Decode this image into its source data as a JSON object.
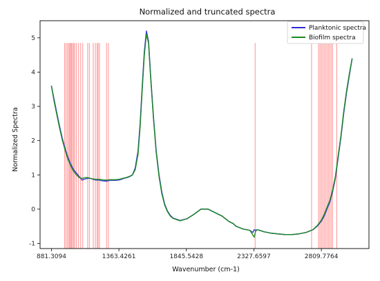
{
  "chart_data": {
    "type": "line",
    "title": "Normalized and truncated spectra",
    "xlabel": "Wavenumber (cm-1)",
    "ylabel": "Normalized Spectra",
    "xlim": [
      800,
      3150
    ],
    "ylim": [
      -1.15,
      5.5
    ],
    "x_ticks": [
      {
        "value": 881.3094,
        "label": "881.3094"
      },
      {
        "value": 1363.4261,
        "label": "1363.4261"
      },
      {
        "value": 1845.5428,
        "label": "1845.5428"
      },
      {
        "value": 2327.6597,
        "label": "2327.6597"
      },
      {
        "value": 2809.7764,
        "label": "2809.7764"
      }
    ],
    "y_ticks": [
      -1,
      0,
      1,
      2,
      3,
      4,
      5
    ],
    "grid": false,
    "legend_position": "top-right",
    "series": [
      {
        "name": "Planktonic spectra",
        "color": "#2b2bd6",
        "x": [
          881,
          900,
          920,
          940,
          960,
          980,
          1000,
          1020,
          1040,
          1060,
          1080,
          1100,
          1120,
          1140,
          1160,
          1180,
          1200,
          1220,
          1240,
          1260,
          1280,
          1300,
          1320,
          1340,
          1363,
          1380,
          1400,
          1420,
          1440,
          1460,
          1480,
          1500,
          1515,
          1530,
          1545,
          1560,
          1575,
          1590,
          1610,
          1630,
          1650,
          1670,
          1690,
          1710,
          1730,
          1750,
          1800,
          1850,
          1900,
          1950,
          2000,
          2050,
          2100,
          2150,
          2180,
          2200,
          2250,
          2300,
          2320,
          2330,
          2340,
          2350,
          2370,
          2400,
          2450,
          2500,
          2550,
          2600,
          2650,
          2700,
          2750,
          2780,
          2810,
          2830,
          2850,
          2870,
          2890,
          2910,
          2930,
          2950,
          2970,
          2990,
          3010,
          3030
        ],
        "y": [
          3.6,
          3.2,
          2.8,
          2.4,
          2.05,
          1.75,
          1.5,
          1.3,
          1.15,
          1.05,
          0.95,
          0.85,
          0.88,
          0.9,
          0.9,
          0.87,
          0.85,
          0.85,
          0.83,
          0.82,
          0.82,
          0.84,
          0.84,
          0.84,
          0.85,
          0.87,
          0.9,
          0.92,
          0.95,
          1.0,
          1.2,
          1.7,
          2.5,
          3.6,
          4.6,
          5.2,
          4.9,
          3.9,
          2.7,
          1.7,
          1.0,
          0.5,
          0.15,
          -0.05,
          -0.18,
          -0.26,
          -0.33,
          -0.28,
          -0.15,
          0.0,
          0.0,
          -0.1,
          -0.2,
          -0.36,
          -0.42,
          -0.5,
          -0.58,
          -0.62,
          -0.68,
          -0.6,
          -0.62,
          -0.6,
          -0.62,
          -0.66,
          -0.7,
          -0.72,
          -0.74,
          -0.74,
          -0.72,
          -0.68,
          -0.6,
          -0.5,
          -0.35,
          -0.2,
          0.0,
          0.2,
          0.5,
          0.9,
          1.5,
          2.1,
          2.8,
          3.4,
          3.9,
          4.4
        ]
      },
      {
        "name": "Biofilm spectra",
        "color": "#1a8a1a",
        "x": [
          881,
          900,
          920,
          940,
          960,
          980,
          1000,
          1020,
          1040,
          1060,
          1080,
          1100,
          1120,
          1140,
          1160,
          1180,
          1200,
          1220,
          1240,
          1260,
          1280,
          1300,
          1320,
          1340,
          1363,
          1380,
          1400,
          1420,
          1440,
          1460,
          1480,
          1500,
          1515,
          1530,
          1545,
          1560,
          1575,
          1590,
          1610,
          1630,
          1650,
          1670,
          1690,
          1710,
          1730,
          1750,
          1800,
          1850,
          1900,
          1950,
          2000,
          2050,
          2100,
          2150,
          2180,
          2200,
          2250,
          2300,
          2320,
          2330,
          2340,
          2350,
          2370,
          2400,
          2450,
          2500,
          2550,
          2600,
          2650,
          2700,
          2750,
          2780,
          2810,
          2830,
          2850,
          2870,
          2890,
          2910,
          2930,
          2950,
          2970,
          2990,
          3010,
          3030
        ],
        "y": [
          3.6,
          3.15,
          2.75,
          2.35,
          2.0,
          1.7,
          1.45,
          1.25,
          1.1,
          1.0,
          0.92,
          0.9,
          0.92,
          0.92,
          0.9,
          0.88,
          0.87,
          0.87,
          0.86,
          0.85,
          0.85,
          0.86,
          0.86,
          0.86,
          0.87,
          0.89,
          0.91,
          0.93,
          0.96,
          1.0,
          1.15,
          1.6,
          2.4,
          3.5,
          4.5,
          5.1,
          4.85,
          3.85,
          2.65,
          1.65,
          0.95,
          0.45,
          0.12,
          -0.07,
          -0.2,
          -0.27,
          -0.34,
          -0.28,
          -0.15,
          0.0,
          0.0,
          -0.1,
          -0.2,
          -0.36,
          -0.42,
          -0.5,
          -0.58,
          -0.62,
          -0.75,
          -0.82,
          -0.65,
          -0.6,
          -0.62,
          -0.66,
          -0.7,
          -0.72,
          -0.74,
          -0.74,
          -0.72,
          -0.68,
          -0.6,
          -0.48,
          -0.32,
          -0.15,
          0.05,
          0.25,
          0.55,
          0.95,
          1.55,
          2.15,
          2.85,
          3.45,
          3.95,
          4.4
        ]
      }
    ],
    "highlight_lines": {
      "color": "#ff8a8a",
      "y_top": 4.85,
      "x": [
        975,
        985,
        995,
        1005,
        1012,
        1018,
        1025,
        1032,
        1040,
        1048,
        1060,
        1075,
        1090,
        1105,
        1140,
        1152,
        1180,
        1195,
        1208,
        1215,
        1225,
        1275,
        1288,
        2337,
        2740,
        2790,
        2800,
        2810,
        2820,
        2830,
        2840,
        2850,
        2860,
        2870,
        2880,
        2890,
        2920
      ]
    }
  }
}
